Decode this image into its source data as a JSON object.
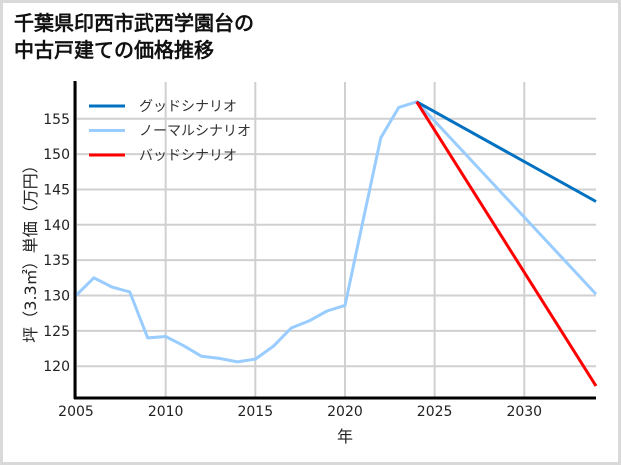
{
  "title": {
    "line1": "千葉県印西市武西学園台の",
    "line2": "中古戸建ての価格推移"
  },
  "chart_data": {
    "type": "line",
    "title": "千葉県印西市武西学園台の中古戸建ての価格推移",
    "xlabel": "年",
    "ylabel": "坪（3.3㎡）単価（万円）",
    "xlim": [
      2005,
      2034
    ],
    "ylim": [
      115.5,
      160.2
    ],
    "grid": true,
    "legend_position": "upper left",
    "x_ticks": [
      2005,
      2010,
      2015,
      2020,
      2025,
      2030
    ],
    "y_ticks": [
      120,
      125,
      130,
      135,
      140,
      145,
      150,
      155
    ],
    "series": [
      {
        "name": "グッドシナリオ",
        "color": "#0070C0",
        "x": [
          2024,
          2034
        ],
        "values": [
          157.4,
          143.3
        ]
      },
      {
        "name": "ノーマルシナリオ",
        "color": "#99CCFF",
        "x": [
          2005,
          2006,
          2007,
          2008,
          2009,
          2010,
          2011,
          2012,
          2013,
          2014,
          2015,
          2016,
          2017,
          2018,
          2019,
          2020,
          2021,
          2022,
          2023,
          2024,
          2034
        ],
        "values": [
          130.0,
          132.5,
          131.2,
          130.5,
          124.0,
          124.2,
          122.9,
          121.4,
          121.1,
          120.6,
          121.0,
          122.8,
          125.4,
          126.4,
          127.8,
          128.6,
          140.5,
          152.3,
          156.6,
          157.4,
          130.2
        ]
      },
      {
        "name": "バッドシナリオ",
        "color": "#FF0000",
        "x": [
          2024,
          2034
        ],
        "values": [
          157.4,
          117.2
        ]
      }
    ]
  }
}
